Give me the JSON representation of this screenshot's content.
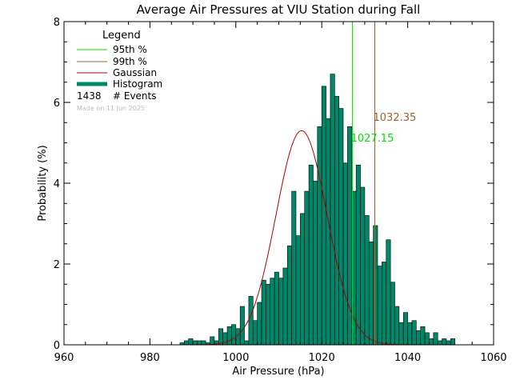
{
  "chart_data": {
    "type": "bar",
    "title": "Average Air Pressures at VIU Station during Fall",
    "xlabel": "Air Pressure (hPa)",
    "ylabel": "Probability (%)",
    "xlim": [
      960,
      1060
    ],
    "ylim": [
      0,
      8
    ],
    "xticks": [
      "960",
      "980",
      "1000",
      "1020",
      "1040",
      "1060"
    ],
    "yticks": [
      "0",
      "2",
      "4",
      "6",
      "8"
    ],
    "grid": false,
    "legend_position": "top-left",
    "legend": {
      "title": "Legend",
      "items": [
        {
          "label": "95th %",
          "color": "#00dd00",
          "style": "line"
        },
        {
          "label": "99th %",
          "color": "#a0602a",
          "style": "line"
        },
        {
          "label": "Gaussian",
          "color": "#aa0000",
          "style": "line"
        },
        {
          "label": "Histogram",
          "color": "#00876a",
          "style": "thick"
        }
      ],
      "events_count": "1438",
      "events_label": "# Events",
      "made_on": "Made on 11 Jun 2025"
    },
    "histogram": {
      "color": "#00876a",
      "bin_width": 1,
      "bin_start": 987,
      "values": [
        0.05,
        0.1,
        0.15,
        0.1,
        0.1,
        0.1,
        0.05,
        0.2,
        0.1,
        0.4,
        0.3,
        0.45,
        0.5,
        0.4,
        0.95,
        0.1,
        1.2,
        0.6,
        1.05,
        1.6,
        1.5,
        1.65,
        1.8,
        1.65,
        1.9,
        2.45,
        3.8,
        2.7,
        3.25,
        3.8,
        4.45,
        4.05,
        5.4,
        6.4,
        5.6,
        6.7,
        6.15,
        5.85,
        4.5,
        5.4,
        3.8,
        4.45,
        3.9,
        3.2,
        2.55,
        2.95,
        1.95,
        2.05,
        2.6,
        1.55,
        0.95,
        0.55,
        0.8,
        0.55,
        0.6,
        0.35,
        0.45,
        0.3,
        0.15,
        0.3,
        0.1,
        0.15,
        0.1,
        0.15
      ]
    },
    "gaussian": {
      "color": "#aa0000",
      "mean": 1015.3,
      "sigma": 5.95,
      "peak": 5.3
    },
    "percentile_95": {
      "value": 1027.15,
      "label": "1027.15",
      "color": "#00dd00"
    },
    "percentile_99": {
      "value": 1032.35,
      "label": "1032.35",
      "color": "#a0602a"
    }
  }
}
